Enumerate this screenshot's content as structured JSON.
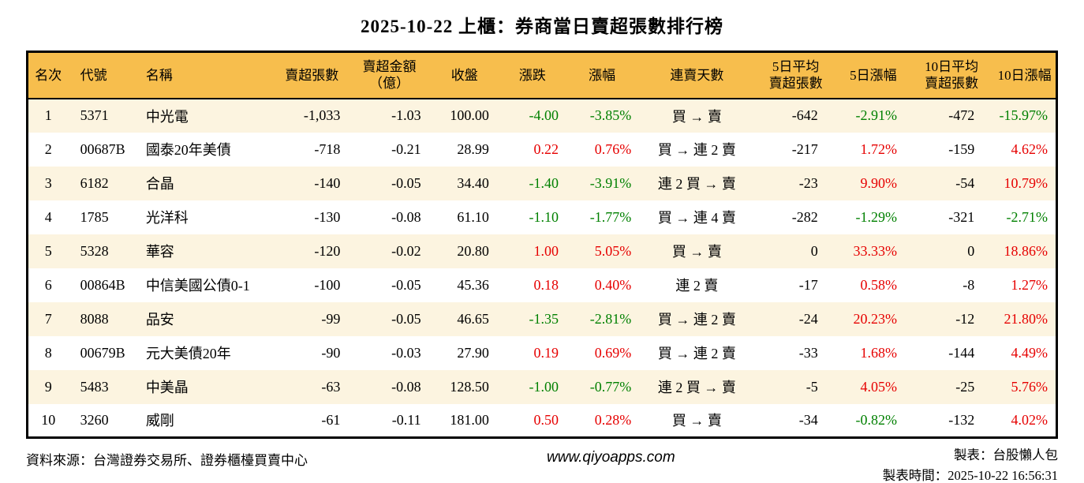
{
  "title": "2025-10-22 上櫃：券商當日賣超張數排行榜",
  "colors": {
    "header_bg": "#F7BE4D",
    "row_alt_bg": "#FCF4E0",
    "up_red": "#E60000",
    "down_green": "#008000",
    "border": "#000000"
  },
  "chart_data": {
    "type": "table",
    "title": "2025-10-22 上櫃：券商當日賣超張數排行榜",
    "columns": [
      {
        "key": "rank",
        "label": "名次"
      },
      {
        "key": "code",
        "label": "代號"
      },
      {
        "key": "name",
        "label": "名稱"
      },
      {
        "key": "sell_shares",
        "label": "賣超張數"
      },
      {
        "key": "sell_amount",
        "label": "賣超金額\n（億）"
      },
      {
        "key": "close",
        "label": "收盤"
      },
      {
        "key": "change",
        "label": "漲跌"
      },
      {
        "key": "change_pct",
        "label": "漲幅"
      },
      {
        "key": "streak",
        "label": "連賣天數"
      },
      {
        "key": "avg5",
        "label": "5日平均\n賣超張數"
      },
      {
        "key": "pct5",
        "label": "5日漲幅"
      },
      {
        "key": "avg10",
        "label": "10日平均\n賣超張數"
      },
      {
        "key": "pct10",
        "label": "10日漲幅"
      }
    ],
    "colored_columns": [
      "change",
      "change_pct",
      "pct5",
      "pct10"
    ],
    "color_rule": "negative = green (down), positive = red (up)",
    "rows": [
      {
        "rank": "1",
        "code": "5371",
        "name": "中光電",
        "sell_shares": "-1,033",
        "sell_amount": "-1.03",
        "close": "100.00",
        "change": "-4.00",
        "change_pct": "-3.85%",
        "streak": "買 → 賣",
        "avg5": "-642",
        "pct5": "-2.91%",
        "avg10": "-472",
        "pct10": "-15.97%"
      },
      {
        "rank": "2",
        "code": "00687B",
        "name": "國泰20年美債",
        "sell_shares": "-718",
        "sell_amount": "-0.21",
        "close": "28.99",
        "change": "0.22",
        "change_pct": "0.76%",
        "streak": "買 → 連 2 賣",
        "avg5": "-217",
        "pct5": "1.72%",
        "avg10": "-159",
        "pct10": "4.62%"
      },
      {
        "rank": "3",
        "code": "6182",
        "name": "合晶",
        "sell_shares": "-140",
        "sell_amount": "-0.05",
        "close": "34.40",
        "change": "-1.40",
        "change_pct": "-3.91%",
        "streak": "連 2 買 → 賣",
        "avg5": "-23",
        "pct5": "9.90%",
        "avg10": "-54",
        "pct10": "10.79%"
      },
      {
        "rank": "4",
        "code": "1785",
        "name": "光洋科",
        "sell_shares": "-130",
        "sell_amount": "-0.08",
        "close": "61.10",
        "change": "-1.10",
        "change_pct": "-1.77%",
        "streak": "買 → 連 4 賣",
        "avg5": "-282",
        "pct5": "-1.29%",
        "avg10": "-321",
        "pct10": "-2.71%"
      },
      {
        "rank": "5",
        "code": "5328",
        "name": "華容",
        "sell_shares": "-120",
        "sell_amount": "-0.02",
        "close": "20.80",
        "change": "1.00",
        "change_pct": "5.05%",
        "streak": "買 → 賣",
        "avg5": "0",
        "pct5": "33.33%",
        "avg10": "0",
        "pct10": "18.86%"
      },
      {
        "rank": "6",
        "code": "00864B",
        "name": "中信美國公債0-1",
        "sell_shares": "-100",
        "sell_amount": "-0.05",
        "close": "45.36",
        "change": "0.18",
        "change_pct": "0.40%",
        "streak": "連 2 賣",
        "avg5": "-17",
        "pct5": "0.58%",
        "avg10": "-8",
        "pct10": "1.27%"
      },
      {
        "rank": "7",
        "code": "8088",
        "name": "品安",
        "sell_shares": "-99",
        "sell_amount": "-0.05",
        "close": "46.65",
        "change": "-1.35",
        "change_pct": "-2.81%",
        "streak": "買 → 連 2 賣",
        "avg5": "-24",
        "pct5": "20.23%",
        "avg10": "-12",
        "pct10": "21.80%"
      },
      {
        "rank": "8",
        "code": "00679B",
        "name": "元大美債20年",
        "sell_shares": "-90",
        "sell_amount": "-0.03",
        "close": "27.90",
        "change": "0.19",
        "change_pct": "0.69%",
        "streak": "買 → 連 2 賣",
        "avg5": "-33",
        "pct5": "1.68%",
        "avg10": "-144",
        "pct10": "4.49%"
      },
      {
        "rank": "9",
        "code": "5483",
        "name": "中美晶",
        "sell_shares": "-63",
        "sell_amount": "-0.08",
        "close": "128.50",
        "change": "-1.00",
        "change_pct": "-0.77%",
        "streak": "連 2 買 → 賣",
        "avg5": "-5",
        "pct5": "4.05%",
        "avg10": "-25",
        "pct10": "5.76%"
      },
      {
        "rank": "10",
        "code": "3260",
        "name": "威剛",
        "sell_shares": "-61",
        "sell_amount": "-0.11",
        "close": "181.00",
        "change": "0.50",
        "change_pct": "0.28%",
        "streak": "買 → 賣",
        "avg5": "-34",
        "pct5": "-0.82%",
        "avg10": "-132",
        "pct10": "4.02%"
      }
    ]
  },
  "footer": {
    "source": "資料來源：台灣證券交易所、證券櫃檯買賣中心",
    "website": "www.qiyoapps.com",
    "author": "製表：台股懶人包",
    "timestamp": "製表時間：2025-10-22 16:56:31"
  }
}
